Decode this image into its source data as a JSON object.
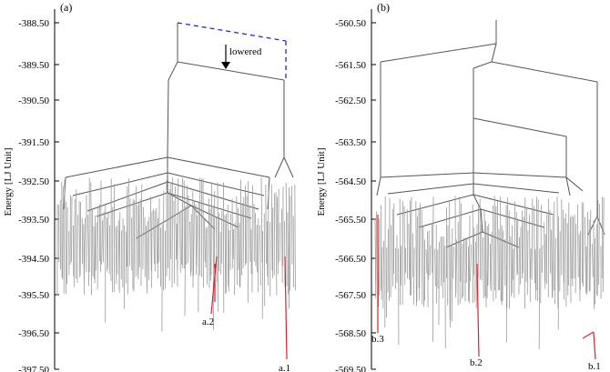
{
  "panels": [
    {
      "label": "(a)",
      "ylabel": "Energy [LJ Unit]",
      "yticks": [
        "-388.50",
        "-389.50",
        "-390.50",
        "-391.50",
        "-392.50",
        "-393.50",
        "-394.50",
        "-395.50",
        "-396.50",
        "-397.50"
      ],
      "annotations": {
        "lowered": "lowered",
        "min1": "a.1",
        "min2": "a.2"
      }
    },
    {
      "label": "(b)",
      "ylabel": "Energy [LJ Unit]",
      "yticks": [
        "-560.50",
        "-561.50",
        "-562.50",
        "-563.50",
        "-564.50",
        "-565.50",
        "-566.50",
        "-567.50",
        "-568.50",
        "-569.50"
      ],
      "annotations": {
        "min1": "b.1",
        "min2": "b.2",
        "min3": "b.3"
      }
    }
  ],
  "colors": {
    "tree": "#555555",
    "leaves": "#999999",
    "highlight": "#e0202a",
    "dashed": "#2a2ad0",
    "axis": "#000000"
  }
}
